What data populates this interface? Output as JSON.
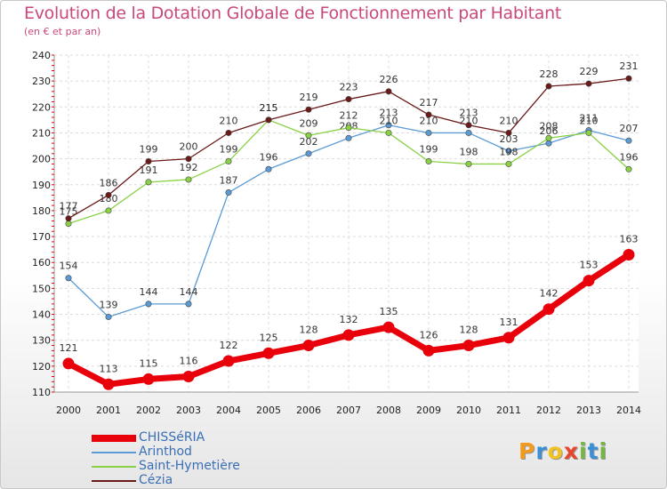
{
  "header": {
    "title": "Evolution de la Dotation Globale de Fonctionnement par Habitant",
    "subtitle": "(en € et par an)"
  },
  "logo": {
    "text": "Proxiti",
    "letters": [
      {
        "ch": "P",
        "color": "#f29a1e"
      },
      {
        "ch": "r",
        "color": "#3a8fd6"
      },
      {
        "ch": "o",
        "color": "#f2c21e"
      },
      {
        "ch": "x",
        "color": "#e8452c"
      },
      {
        "ch": "i",
        "color": "#74b843"
      },
      {
        "ch": "t",
        "color": "#3a8fd6"
      },
      {
        "ch": "i",
        "color": "#74b843"
      }
    ]
  },
  "chart_data": {
    "type": "line",
    "title": "Evolution de la Dotation Globale de Fonctionnement par Habitant",
    "subtitle": "(en € et par an)",
    "x": [
      2000,
      2001,
      2002,
      2003,
      2004,
      2005,
      2006,
      2007,
      2008,
      2009,
      2010,
      2011,
      2012,
      2013,
      2014
    ],
    "ylim": [
      110,
      240
    ],
    "yticks": [
      110,
      120,
      130,
      140,
      150,
      160,
      170,
      180,
      190,
      200,
      210,
      220,
      230,
      240
    ],
    "grid": true,
    "legend_position": "bottom-left",
    "series": [
      {
        "name": "CHISSéRIA",
        "color": "#e8000b",
        "emphasis": true,
        "values": [
          121,
          113,
          115,
          116,
          122,
          125,
          128,
          132,
          135,
          126,
          128,
          131,
          142,
          153,
          163
        ]
      },
      {
        "name": "Arinthod",
        "color": "#5b9bd5",
        "emphasis": false,
        "values": [
          154,
          139,
          144,
          144,
          187,
          196,
          202,
          208,
          213,
          210,
          210,
          203,
          206,
          211,
          207
        ]
      },
      {
        "name": "Saint-Hymetière",
        "color": "#8ad146",
        "emphasis": false,
        "values": [
          175,
          180,
          191,
          192,
          199,
          215,
          209,
          212,
          210,
          199,
          198,
          198,
          208,
          210,
          196
        ]
      },
      {
        "name": "Cézia",
        "color": "#6b1a1a",
        "emphasis": false,
        "values": [
          177,
          186,
          199,
          200,
          210,
          215,
          219,
          223,
          226,
          217,
          213,
          210,
          228,
          229,
          231
        ]
      }
    ]
  }
}
